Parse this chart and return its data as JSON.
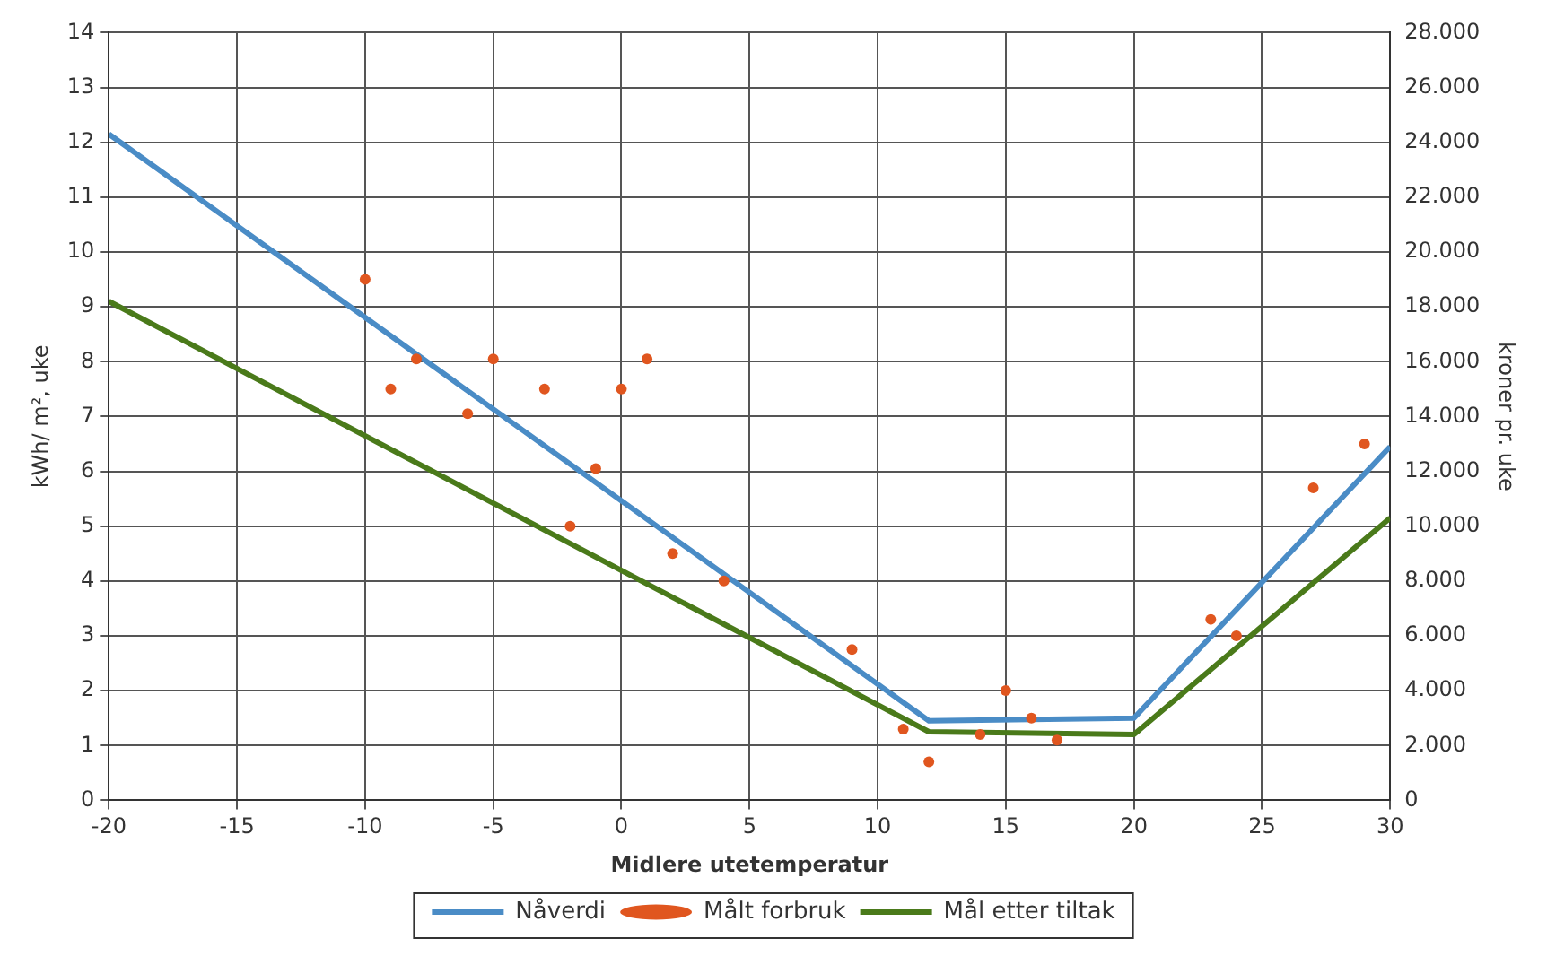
{
  "chart_data": {
    "type": "line",
    "xlabel": "Midlere utetemperatur",
    "ylabel": "kWh/ m², uke",
    "y2label": "kroner pr. uke",
    "series": [
      {
        "name": "Nåverdi",
        "color": "#4a8cc6",
        "x": [
          -20,
          12,
          20,
          30
        ],
        "values": [
          12.15,
          1.45,
          1.5,
          6.45
        ]
      },
      {
        "name": "Målt forbruk",
        "type": "scatter",
        "color": "#e0561f",
        "marker": "circle",
        "x": [
          -10,
          -9,
          -8,
          -6,
          -5,
          -3,
          -2,
          -1,
          0,
          1,
          2,
          4,
          9,
          11,
          12,
          14,
          15,
          16,
          17,
          23,
          24,
          27,
          29
        ],
        "values": [
          9.5,
          7.5,
          8.05,
          7.05,
          8.05,
          7.5,
          5.0,
          6.05,
          7.5,
          8.05,
          4.5,
          4.0,
          2.75,
          1.3,
          0.7,
          1.2,
          2.0,
          1.5,
          1.1,
          3.3,
          3.0,
          5.7,
          6.5
        ]
      },
      {
        "name": "Mål etter tiltak",
        "color": "#4a7a1a",
        "x": [
          -20,
          12,
          20,
          30
        ],
        "values": [
          9.1,
          1.25,
          1.2,
          5.15
        ]
      }
    ],
    "xlim": [
      -20,
      30
    ],
    "xticks": [
      -20,
      -15,
      -10,
      -5,
      0,
      5,
      10,
      15,
      20,
      25,
      30
    ],
    "ylim": [
      0,
      14
    ],
    "yticks": [
      0,
      1,
      2,
      3,
      4,
      5,
      6,
      7,
      8,
      9,
      10,
      11,
      12,
      13,
      14
    ],
    "y2lim": [
      0,
      28000
    ],
    "y2ticks": [
      0,
      {
        "value": 2000,
        "label": "2.000"
      },
      {
        "value": 4000,
        "label": "4.000"
      },
      {
        "value": 6000,
        "label": "6.000"
      },
      {
        "value": 8000,
        "label": "8.000"
      },
      {
        "value": 10000,
        "label": "10.000"
      },
      {
        "value": 12000,
        "label": "12.000"
      },
      {
        "value": 14000,
        "label": "14.000"
      },
      {
        "value": 16000,
        "label": "16.000"
      },
      {
        "value": 18000,
        "label": "18.000"
      },
      {
        "value": 20000,
        "label": "20.000"
      },
      {
        "value": 22000,
        "label": "22.000"
      },
      {
        "value": 24000,
        "label": "24.000"
      },
      {
        "value": 26000,
        "label": "26.000"
      },
      {
        "value": 28000,
        "label": "28.000"
      }
    ],
    "grid": true,
    "legend": "bottom"
  }
}
